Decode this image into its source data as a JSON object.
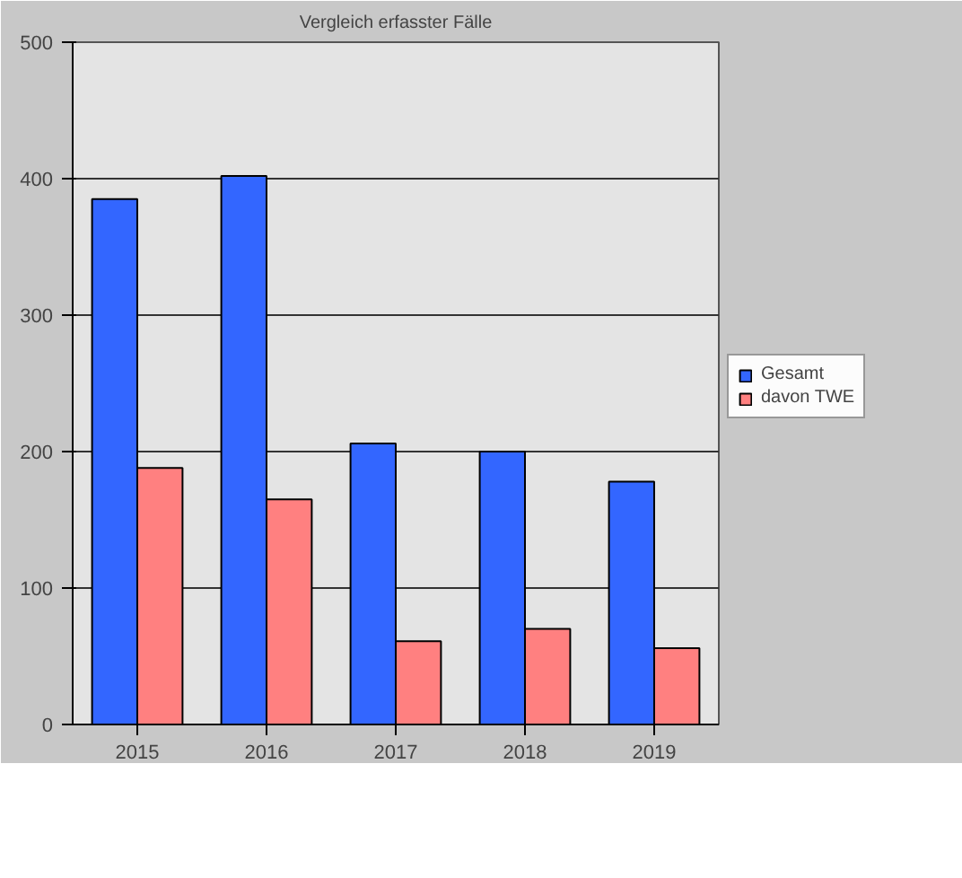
{
  "chart_data": {
    "type": "bar",
    "title": "Vergleich erfasster Fälle",
    "categories": [
      "2015",
      "2016",
      "2017",
      "2018",
      "2019"
    ],
    "series": [
      {
        "name": "Gesamt",
        "color": "#3366ff",
        "values": [
          385,
          402,
          206,
          200,
          178
        ]
      },
      {
        "name": "davon TWE",
        "color": "#ff8080",
        "values": [
          188,
          165,
          61,
          70,
          56
        ]
      }
    ],
    "ylim": [
      0,
      500
    ],
    "yticks": [
      0,
      100,
      200,
      300,
      400,
      500
    ],
    "grid": "y",
    "legend": "right"
  }
}
